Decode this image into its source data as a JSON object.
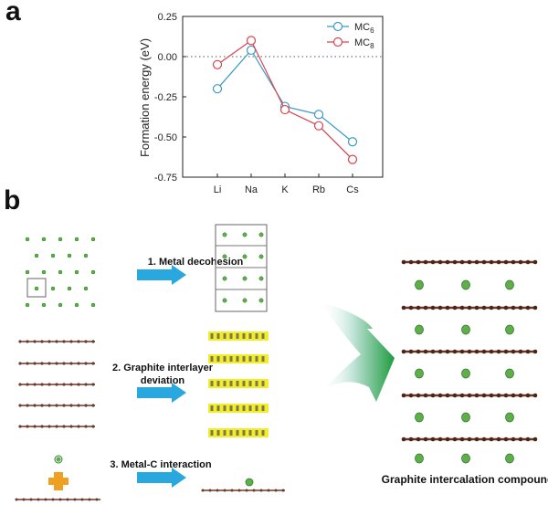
{
  "panel_a": {
    "letter": "a"
  },
  "panel_b": {
    "letter": "b"
  },
  "chart_data": {
    "type": "line",
    "categories": [
      "Li",
      "Na",
      "K",
      "Rb",
      "Cs"
    ],
    "series": [
      {
        "name_main": "MC",
        "name_sub": "6",
        "color": "#3b9ac2",
        "values": [
          -0.2,
          0.04,
          -0.31,
          -0.36,
          -0.53
        ]
      },
      {
        "name_main": "MC",
        "name_sub": "8",
        "color": "#d9434f",
        "values": [
          -0.05,
          0.1,
          -0.33,
          -0.43,
          -0.64
        ]
      }
    ],
    "ylabel": "Formation energy (eV)",
    "ylim": [
      -0.75,
      0.25
    ],
    "yticks": [
      "0.25",
      "0.00",
      "-0.25",
      "-0.50",
      "-0.75"
    ],
    "ytick_values": [
      0.25,
      0,
      -0.25,
      -0.5,
      -0.75
    ],
    "reference_line": 0,
    "legend_position": "top-right"
  },
  "steps": [
    {
      "label": "1. Metal decohesion"
    },
    {
      "label_line1": "2. Graphite interlayer",
      "label_line2": "deviation"
    },
    {
      "label": "3. Metal-C interaction"
    }
  ],
  "result": {
    "label": "Graphite intercalation compound"
  },
  "colors": {
    "metal": "#5fae4a",
    "carbon": "#6b3a2a",
    "arrow": "#29a7df",
    "big_arrow": "#2fa84f",
    "plus": "#f0a020",
    "highlight": "#f2ec2a"
  }
}
